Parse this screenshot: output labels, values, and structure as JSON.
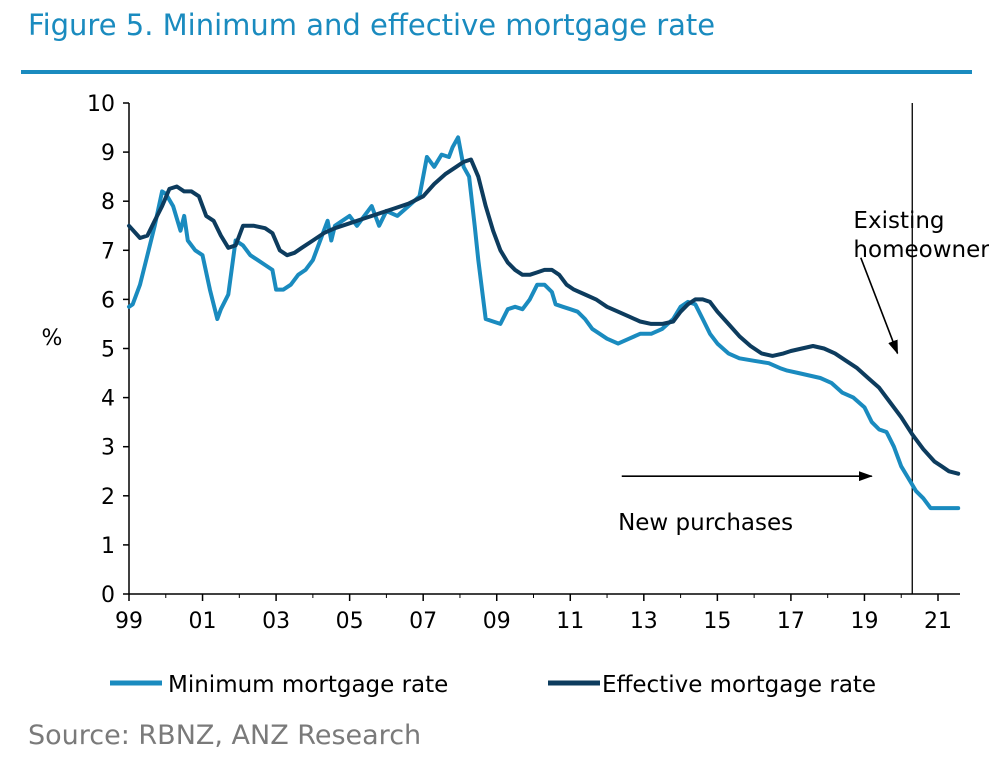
{
  "header": {
    "title": "Figure 5. Minimum and effective mortgage rate"
  },
  "footer": {
    "source": "Source: RBNZ, ANZ Research"
  },
  "colors": {
    "title": "#1a8bbf",
    "minimum": "#1a8bbf",
    "effective": "#0d3c5e",
    "axis": "#000000",
    "source": "#7a7a7a"
  },
  "chart_data": {
    "type": "line",
    "title": "Figure 5. Minimum and effective mortgage rate",
    "ylabel": "%",
    "xlabel": "",
    "xlim": [
      1999,
      2021.6
    ],
    "ylim": [
      0,
      10
    ],
    "grid": false,
    "legend_position": "bottom",
    "y_ticks": [
      "0",
      "1",
      "2",
      "3",
      "4",
      "5",
      "6",
      "7",
      "8",
      "9",
      "10"
    ],
    "x_ticks": [
      {
        "value": 1999,
        "label": "99"
      },
      {
        "value": 2001,
        "label": "01"
      },
      {
        "value": 2003,
        "label": "03"
      },
      {
        "value": 2005,
        "label": "05"
      },
      {
        "value": 2007,
        "label": "07"
      },
      {
        "value": 2009,
        "label": "09"
      },
      {
        "value": 2011,
        "label": "11"
      },
      {
        "value": 2013,
        "label": "13"
      },
      {
        "value": 2015,
        "label": "15"
      },
      {
        "value": 2017,
        "label": "17"
      },
      {
        "value": 2019,
        "label": "19"
      },
      {
        "value": 2021,
        "label": "21"
      }
    ],
    "vertical_line_x": 2020.3,
    "annotations": [
      {
        "lines": [
          "Existing",
          "homeowners"
        ],
        "anchor_x": 2018.7,
        "anchor_y": 7.45,
        "arrow_from": [
          2018.9,
          6.85
        ],
        "arrow_to": [
          2019.9,
          4.9
        ]
      },
      {
        "lines": [
          "New purchases"
        ],
        "anchor_x": 2012.3,
        "anchor_y": 1.3,
        "arrow_from": [
          2012.4,
          2.4
        ],
        "arrow_to": [
          2019.2,
          2.4
        ]
      }
    ],
    "series": [
      {
        "name": "Minimum mortgage rate",
        "color": "#1a8bbf",
        "x": [
          1999.0,
          1999.1,
          1999.3,
          1999.5,
          1999.7,
          1999.9,
          2000.0,
          2000.2,
          2000.4,
          2000.5,
          2000.6,
          2000.8,
          2001.0,
          2001.2,
          2001.4,
          2001.5,
          2001.7,
          2001.9,
          2002.1,
          2002.3,
          2002.5,
          2002.7,
          2002.9,
          2003.0,
          2003.2,
          2003.4,
          2003.6,
          2003.8,
          2004.0,
          2004.2,
          2004.4,
          2004.5,
          2004.6,
          2004.8,
          2005.0,
          2005.2,
          2005.4,
          2005.6,
          2005.8,
          2006.0,
          2006.3,
          2006.6,
          2006.9,
          2007.1,
          2007.3,
          2007.5,
          2007.7,
          2007.8,
          2007.95,
          2008.1,
          2008.25,
          2008.4,
          2008.5,
          2008.7,
          2008.9,
          2009.1,
          2009.3,
          2009.5,
          2009.7,
          2009.9,
          2010.1,
          2010.3,
          2010.5,
          2010.6,
          2010.8,
          2011.0,
          2011.2,
          2011.4,
          2011.6,
          2011.8,
          2012.0,
          2012.3,
          2012.6,
          2012.9,
          2013.2,
          2013.5,
          2013.8,
          2014.0,
          2014.2,
          2014.4,
          2014.6,
          2014.8,
          2015.0,
          2015.3,
          2015.6,
          2016.0,
          2016.4,
          2016.7,
          2016.9,
          2017.2,
          2017.5,
          2017.8,
          2018.1,
          2018.4,
          2018.7,
          2019.0,
          2019.2,
          2019.4,
          2019.6,
          2019.8,
          2020.0,
          2020.2,
          2020.4,
          2020.6,
          2020.8,
          2021.0,
          2021.3,
          2021.55
        ],
        "values": [
          5.85,
          5.9,
          6.3,
          6.9,
          7.5,
          8.2,
          8.15,
          7.9,
          7.4,
          7.7,
          7.2,
          7.0,
          6.9,
          6.2,
          5.6,
          5.8,
          6.1,
          7.2,
          7.1,
          6.9,
          6.8,
          6.7,
          6.6,
          6.2,
          6.2,
          6.3,
          6.5,
          6.6,
          6.8,
          7.2,
          7.6,
          7.2,
          7.5,
          7.6,
          7.7,
          7.5,
          7.7,
          7.9,
          7.5,
          7.8,
          7.7,
          7.9,
          8.1,
          8.9,
          8.7,
          8.95,
          8.9,
          9.1,
          9.3,
          8.7,
          8.5,
          7.5,
          6.8,
          5.6,
          5.55,
          5.5,
          5.8,
          5.85,
          5.8,
          6.0,
          6.3,
          6.3,
          6.15,
          5.9,
          5.85,
          5.8,
          5.75,
          5.6,
          5.4,
          5.3,
          5.2,
          5.1,
          5.2,
          5.3,
          5.3,
          5.4,
          5.6,
          5.85,
          5.95,
          5.9,
          5.6,
          5.3,
          5.1,
          4.9,
          4.8,
          4.75,
          4.7,
          4.6,
          4.55,
          4.5,
          4.45,
          4.4,
          4.3,
          4.1,
          4.0,
          3.8,
          3.5,
          3.35,
          3.3,
          3.0,
          2.6,
          2.35,
          2.1,
          1.95,
          1.75,
          1.75,
          1.75,
          1.75
        ]
      },
      {
        "name": "Effective mortgage rate",
        "color": "#0d3c5e",
        "x": [
          1999.0,
          1999.3,
          1999.5,
          1999.7,
          1999.9,
          2000.1,
          2000.3,
          2000.5,
          2000.7,
          2000.9,
          2001.1,
          2001.3,
          2001.5,
          2001.7,
          2001.9,
          2002.1,
          2002.4,
          2002.7,
          2002.9,
          2003.1,
          2003.3,
          2003.5,
          2003.7,
          2004.0,
          2004.3,
          2004.6,
          2005.0,
          2005.4,
          2005.8,
          2006.2,
          2006.6,
          2007.0,
          2007.3,
          2007.6,
          2007.9,
          2008.1,
          2008.3,
          2008.5,
          2008.7,
          2008.9,
          2009.1,
          2009.3,
          2009.5,
          2009.7,
          2009.9,
          2010.1,
          2010.3,
          2010.5,
          2010.7,
          2010.9,
          2011.1,
          2011.4,
          2011.7,
          2012.0,
          2012.3,
          2012.6,
          2012.9,
          2013.2,
          2013.5,
          2013.8,
          2014.0,
          2014.2,
          2014.4,
          2014.6,
          2014.8,
          2015.0,
          2015.3,
          2015.6,
          2015.9,
          2016.2,
          2016.5,
          2016.8,
          2017.0,
          2017.3,
          2017.6,
          2017.9,
          2018.2,
          2018.5,
          2018.8,
          2019.1,
          2019.4,
          2019.7,
          2020.0,
          2020.3,
          2020.6,
          2020.9,
          2021.1,
          2021.3,
          2021.55
        ],
        "values": [
          7.5,
          7.25,
          7.3,
          7.6,
          7.9,
          8.25,
          8.3,
          8.2,
          8.2,
          8.1,
          7.7,
          7.6,
          7.3,
          7.05,
          7.1,
          7.5,
          7.5,
          7.45,
          7.35,
          7.0,
          6.9,
          6.95,
          7.05,
          7.2,
          7.35,
          7.45,
          7.55,
          7.65,
          7.75,
          7.85,
          7.95,
          8.1,
          8.35,
          8.55,
          8.7,
          8.8,
          8.85,
          8.5,
          7.9,
          7.4,
          7.0,
          6.75,
          6.6,
          6.5,
          6.5,
          6.55,
          6.6,
          6.6,
          6.5,
          6.3,
          6.2,
          6.1,
          6.0,
          5.85,
          5.75,
          5.65,
          5.55,
          5.5,
          5.5,
          5.55,
          5.75,
          5.9,
          6.0,
          6.0,
          5.95,
          5.75,
          5.5,
          5.25,
          5.05,
          4.9,
          4.85,
          4.9,
          4.95,
          5.0,
          5.05,
          5.0,
          4.9,
          4.75,
          4.6,
          4.4,
          4.2,
          3.9,
          3.6,
          3.25,
          2.95,
          2.7,
          2.6,
          2.5,
          2.45
        ]
      }
    ]
  }
}
